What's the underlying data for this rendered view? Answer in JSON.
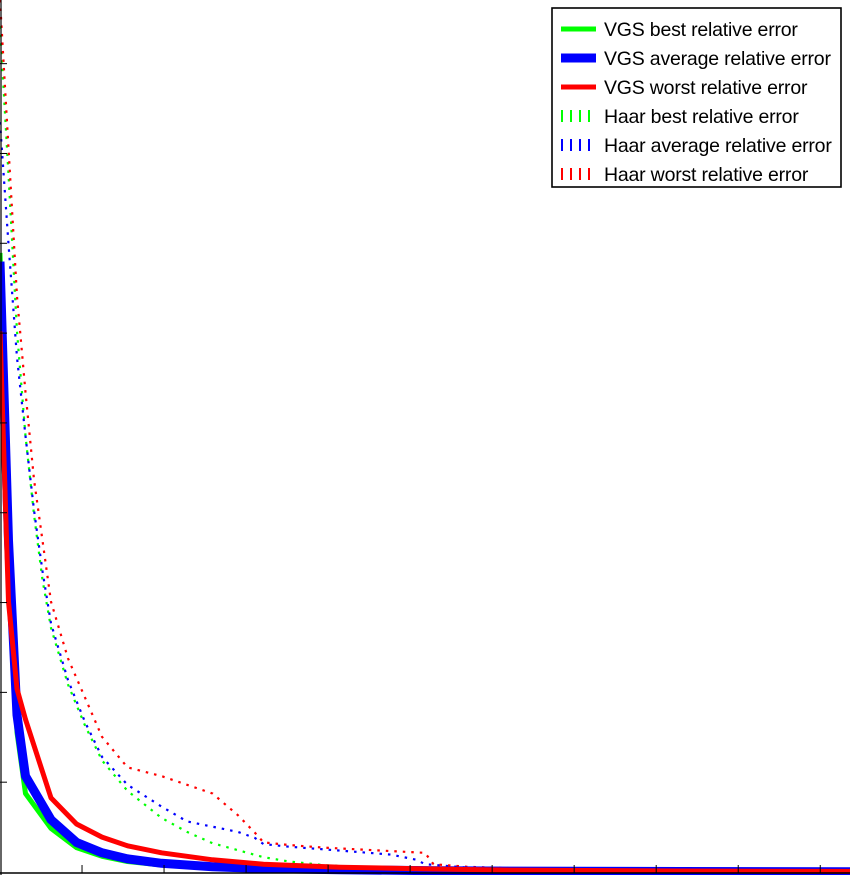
{
  "chart_data": {
    "type": "line",
    "grid": false,
    "legend_position": "top-right",
    "x_axis_visible_range": [
      0,
      100
    ],
    "y_axis_visible_range": [
      0,
      100
    ],
    "series": [
      {
        "name": "VGS best relative error",
        "color": "#00ff00",
        "style": "solid",
        "weight": "medium",
        "x": [
          0,
          1,
          2,
          3,
          6,
          9,
          12,
          15,
          19,
          25,
          31,
          40,
          50,
          60,
          80,
          100
        ],
        "y": [
          71,
          37,
          16,
          9,
          5,
          2.8,
          1.8,
          1.2,
          0.8,
          0.45,
          0.3,
          0.18,
          0.12,
          0.08,
          0.05,
          0.03
        ]
      },
      {
        "name": "VGS average relative error",
        "color": "#0000ff",
        "style": "solid",
        "weight": "heavy",
        "x": [
          0,
          1,
          2,
          3,
          6,
          9,
          12,
          15,
          19,
          25,
          31,
          40,
          50,
          60,
          80,
          100
        ],
        "y": [
          70,
          38,
          18,
          11,
          6,
          3.4,
          2.2,
          1.5,
          1.0,
          0.6,
          0.4,
          0.25,
          0.16,
          0.1,
          0.06,
          0.04
        ]
      },
      {
        "name": "VGS worst relative error",
        "color": "#ff0000",
        "style": "solid",
        "weight": "medium",
        "x": [
          0,
          1,
          2,
          3,
          6,
          9,
          12,
          15,
          19,
          25,
          31,
          40,
          50,
          60,
          80,
          100
        ],
        "y": [
          62,
          31,
          21,
          17.5,
          8.5,
          5.5,
          4,
          3,
          2.2,
          1.4,
          0.9,
          0.55,
          0.35,
          0.22,
          0.12,
          0.07
        ]
      },
      {
        "name": "Haar best relative error",
        "color": "#00ff00",
        "style": "dotted",
        "weight": "light",
        "x": [
          0,
          1,
          2,
          3,
          4,
          5,
          6,
          8,
          10,
          12,
          15,
          19,
          22,
          25,
          28,
          31,
          34,
          38,
          42,
          46,
          50,
          60,
          70,
          85,
          100
        ],
        "y": [
          97,
          80,
          62,
          50,
          41,
          33.5,
          28,
          21.5,
          16.8,
          12.8,
          9.3,
          6.2,
          4.6,
          3.3,
          2.5,
          1.7,
          1.2,
          0.8,
          0.6,
          0.45,
          0.3,
          0.2,
          0.12,
          0.08,
          0.05
        ]
      },
      {
        "name": "Haar average relative error",
        "color": "#0000ff",
        "style": "dotted",
        "weight": "light",
        "x": [
          0,
          1,
          2,
          3,
          4,
          5,
          6,
          8,
          10,
          12,
          15,
          19,
          22,
          25,
          28,
          30,
          31,
          34,
          38,
          42,
          46,
          49,
          50,
          55,
          60,
          70,
          85,
          100
        ],
        "y": [
          86,
          72,
          59,
          50,
          41.5,
          34.5,
          28.5,
          22,
          17.2,
          13.2,
          10,
          7.5,
          5.8,
          5.2,
          4.6,
          3.9,
          3.2,
          2.9,
          2.6,
          2.3,
          2.0,
          1.4,
          0.9,
          0.5,
          0.4,
          0.25,
          0.15,
          0.1
        ]
      },
      {
        "name": "Haar worst relative error",
        "color": "#ff0000",
        "style": "dotted",
        "weight": "light",
        "x": [
          0,
          1,
          2,
          3,
          4,
          5,
          6,
          8,
          10,
          12,
          15,
          19,
          22,
          25,
          28,
          30,
          31,
          34,
          38,
          42,
          46,
          50,
          51,
          55,
          60,
          70,
          85,
          100
        ],
        "y": [
          100,
          83,
          66,
          55,
          45,
          38,
          31,
          24.5,
          20,
          15.5,
          12,
          11,
          10,
          9,
          6.5,
          4.5,
          3.4,
          3.1,
          2.8,
          2.6,
          2.4,
          2.2,
          0.9,
          0.6,
          0.45,
          0.3,
          0.2,
          0.12
        ]
      }
    ]
  }
}
